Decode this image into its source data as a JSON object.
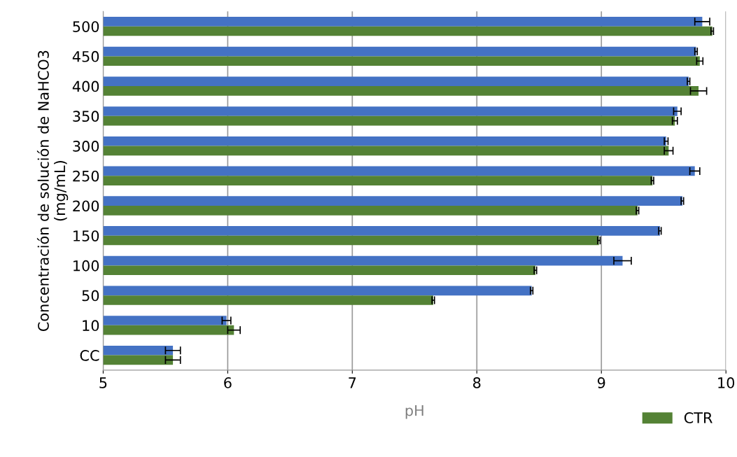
{
  "chart_data": {
    "type": "bar",
    "orientation": "horizontal",
    "xlabel": "pH",
    "ylabel": "Concentración de solución de NaHCO3\n(mg/mL)",
    "categories": [
      "500",
      "450",
      "400",
      "350",
      "300",
      "250",
      "200",
      "150",
      "100",
      "50",
      "10",
      "CC"
    ],
    "series": [
      {
        "color": "#4472c4",
        "values": [
          9.81,
          9.76,
          9.7,
          9.61,
          9.52,
          9.75,
          9.65,
          9.47,
          9.17,
          8.44,
          5.99,
          5.56
        ],
        "errors": [
          0.06,
          0.01,
          0.01,
          0.03,
          0.015,
          0.04,
          0.01,
          0.01,
          0.07,
          0.01,
          0.035,
          0.06
        ]
      },
      {
        "name": "CTR",
        "color": "#548235",
        "values": [
          9.89,
          9.79,
          9.78,
          9.59,
          9.54,
          9.41,
          9.29,
          8.98,
          8.47,
          7.65,
          6.05,
          5.56
        ],
        "errors": [
          0.01,
          0.025,
          0.065,
          0.02,
          0.035,
          0.01,
          0.01,
          0.01,
          0.01,
          0.01,
          0.05,
          0.06
        ]
      }
    ],
    "xlim": [
      5,
      10
    ],
    "xticks": [
      5,
      6,
      7,
      8,
      9,
      10
    ],
    "grid": "x",
    "legend": "bottom right"
  }
}
